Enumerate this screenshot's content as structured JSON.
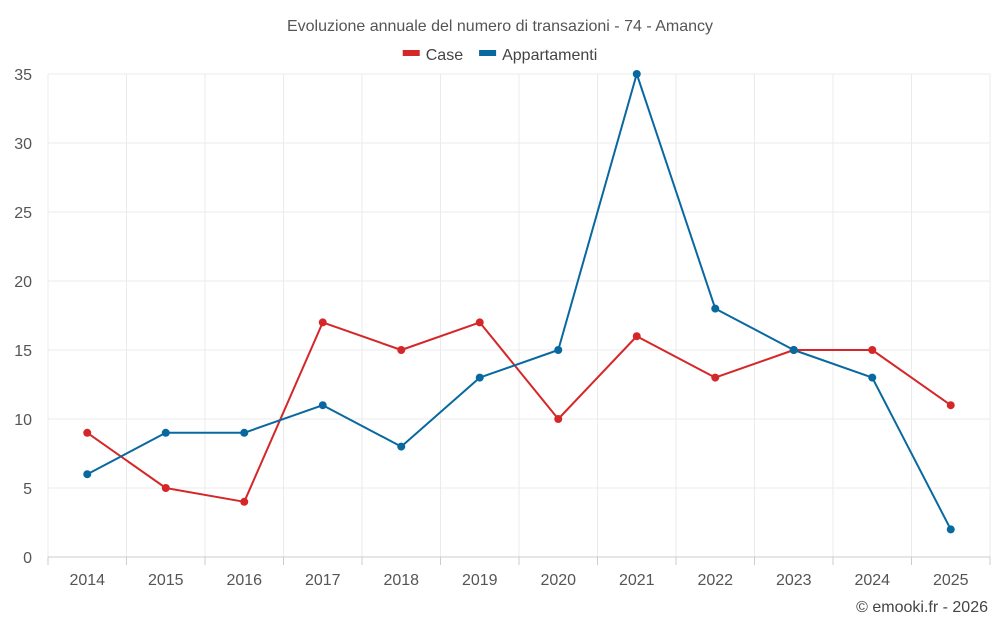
{
  "chart_data": {
    "type": "line",
    "title": "Evoluzione annuale del numero di transazioni - 74 - Amancy",
    "categories": [
      "2014",
      "2015",
      "2016",
      "2017",
      "2018",
      "2019",
      "2020",
      "2021",
      "2022",
      "2023",
      "2024",
      "2025"
    ],
    "series": [
      {
        "name": "Case",
        "color": "#d62728",
        "values": [
          9,
          5,
          4,
          17,
          15,
          17,
          10,
          16,
          13,
          15,
          15,
          11
        ]
      },
      {
        "name": "Appartamenti",
        "color": "#0868a0",
        "values": [
          6,
          9,
          9,
          11,
          8,
          13,
          15,
          35,
          18,
          15,
          13,
          2
        ]
      }
    ],
    "ylim": [
      0,
      35
    ],
    "yticks": [
      0,
      5,
      10,
      15,
      20,
      25,
      30,
      35
    ],
    "grid": true,
    "legend": "top-center",
    "xlabel": "",
    "ylabel": ""
  },
  "credit": "© emooki.fr - 2026"
}
